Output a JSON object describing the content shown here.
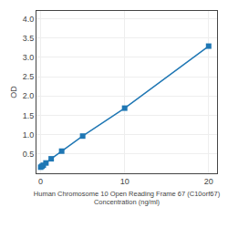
{
  "chart_data": {
    "type": "line",
    "xlabel": "Human Chromosome 10 Open Reading Frame 67 (C10orf67)\nConcentration (ng/ml)",
    "ylabel": "OD",
    "x": [
      0,
      0.156,
      0.313,
      0.625,
      1.25,
      2.5,
      5,
      10,
      20
    ],
    "values": [
      0.158,
      0.182,
      0.208,
      0.267,
      0.375,
      0.573,
      0.963,
      1.685,
      3.29
    ],
    "marker": "square",
    "xlim": [
      -0.5,
      21
    ],
    "xticks": [
      0,
      10,
      20
    ],
    "ylim": [
      0,
      4.2
    ],
    "yticks": [
      0.5,
      {
        "value": 1.0,
        "label": "1.0"
      },
      1.5,
      {
        "value": 2.0,
        "label": "2.0"
      },
      2.5,
      {
        "value": 3.0,
        "label": "3.0"
      },
      3.5,
      {
        "value": 4.0,
        "label": "4.0"
      }
    ],
    "grid": true
  }
}
